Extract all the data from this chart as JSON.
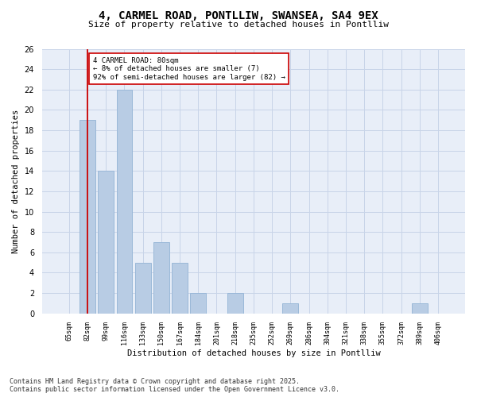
{
  "title": "4, CARMEL ROAD, PONTLLIW, SWANSEA, SA4 9EX",
  "subtitle": "Size of property relative to detached houses in Pontlliw",
  "xlabel": "Distribution of detached houses by size in Pontlliw",
  "ylabel": "Number of detached properties",
  "categories": [
    "65sqm",
    "82sqm",
    "99sqm",
    "116sqm",
    "133sqm",
    "150sqm",
    "167sqm",
    "184sqm",
    "201sqm",
    "218sqm",
    "235sqm",
    "252sqm",
    "269sqm",
    "286sqm",
    "304sqm",
    "321sqm",
    "338sqm",
    "355sqm",
    "372sqm",
    "389sqm",
    "406sqm"
  ],
  "values": [
    0,
    19,
    14,
    22,
    5,
    7,
    5,
    2,
    0,
    2,
    0,
    0,
    1,
    0,
    0,
    0,
    0,
    0,
    0,
    1,
    0
  ],
  "bar_color": "#b8cce4",
  "bar_edge_color": "#9ab8d8",
  "grid_color": "#c8d4e8",
  "background_color": "#e8eef8",
  "vline_x": 1,
  "vline_color": "#cc0000",
  "annotation_text": "4 CARMEL ROAD: 80sqm\n← 8% of detached houses are smaller (7)\n92% of semi-detached houses are larger (82) →",
  "annotation_box_color": "#ffffff",
  "annotation_box_edge": "#cc0000",
  "ylim": [
    0,
    26
  ],
  "yticks": [
    0,
    2,
    4,
    6,
    8,
    10,
    12,
    14,
    16,
    18,
    20,
    22,
    24,
    26
  ],
  "footer_line1": "Contains HM Land Registry data © Crown copyright and database right 2025.",
  "footer_line2": "Contains public sector information licensed under the Open Government Licence v3.0."
}
